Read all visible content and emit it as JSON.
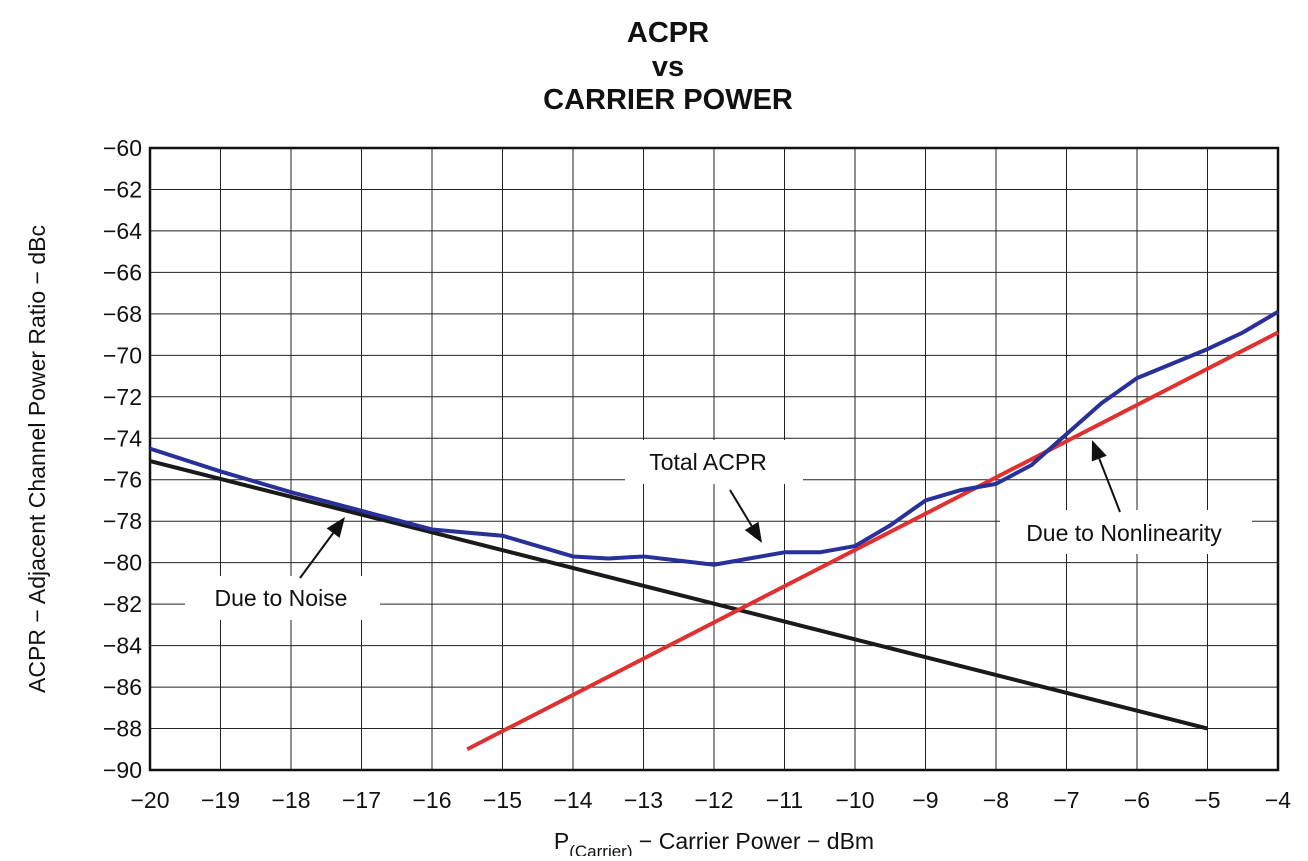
{
  "chart_data": {
    "type": "line",
    "title": [
      "ACPR",
      "vs",
      "CARRIER POWER"
    ],
    "xlabel": {
      "main": "P",
      "sub": "(Carrier)",
      "rest": " − Carrier Power − dBm"
    },
    "ylabel": "ACPR − Adjacent Channel Power Ratio − dBc",
    "xlim": [
      -20,
      -4
    ],
    "ylim": [
      -90,
      -60
    ],
    "xticks": [
      {
        "value": -20,
        "label": "−20"
      },
      {
        "value": -19,
        "label": "−19"
      },
      {
        "value": -18,
        "label": "−18"
      },
      {
        "value": -17,
        "label": "−17"
      },
      {
        "value": -16,
        "label": "−16"
      },
      {
        "value": -15,
        "label": "−15"
      },
      {
        "value": -14,
        "label": "−14"
      },
      {
        "value": -13,
        "label": "−13"
      },
      {
        "value": -12,
        "label": "−12"
      },
      {
        "value": -11,
        "label": "−11"
      },
      {
        "value": -10,
        "label": "−10"
      },
      {
        "value": -9,
        "label": "−9"
      },
      {
        "value": -8,
        "label": "−8"
      },
      {
        "value": -7,
        "label": "−7"
      },
      {
        "value": -6,
        "label": "−6"
      },
      {
        "value": -5,
        "label": "−5"
      },
      {
        "value": -4,
        "label": "−4"
      }
    ],
    "yticks": [
      {
        "value": -60,
        "label": "−60"
      },
      {
        "value": -62,
        "label": "−62"
      },
      {
        "value": -64,
        "label": "−64"
      },
      {
        "value": -66,
        "label": "−66"
      },
      {
        "value": -68,
        "label": "−68"
      },
      {
        "value": -70,
        "label": "−70"
      },
      {
        "value": -72,
        "label": "−72"
      },
      {
        "value": -74,
        "label": "−74"
      },
      {
        "value": -76,
        "label": "−76"
      },
      {
        "value": -78,
        "label": "−78"
      },
      {
        "value": -80,
        "label": "−80"
      },
      {
        "value": -82,
        "label": "−82"
      },
      {
        "value": -84,
        "label": "−84"
      },
      {
        "value": -86,
        "label": "−86"
      },
      {
        "value": -88,
        "label": "−88"
      },
      {
        "value": -90,
        "label": "−90"
      }
    ],
    "grid": true,
    "series": [
      {
        "name": "Due to Noise",
        "color": "#1a1a1a",
        "x": [
          -20,
          -5
        ],
        "values": [
          -75.1,
          -88.0
        ]
      },
      {
        "name": "Due to Nonlinearity",
        "color": "#e03131",
        "x": [
          -15.5,
          -4
        ],
        "values": [
          -89.0,
          -68.9
        ]
      },
      {
        "name": "Total ACPR",
        "color": "#28309a",
        "x": [
          -20,
          -19,
          -18,
          -17,
          -16,
          -15,
          -14.5,
          -14,
          -13.5,
          -13,
          -12.5,
          -12,
          -11.5,
          -11,
          -10.5,
          -10,
          -9.5,
          -9,
          -8.5,
          -8,
          -7.5,
          -7,
          -6.5,
          -6,
          -5.5,
          -5,
          -4.5,
          -4
        ],
        "values": [
          -74.5,
          -75.6,
          -76.6,
          -77.5,
          -78.4,
          -78.7,
          -79.2,
          -79.7,
          -79.8,
          -79.7,
          -79.9,
          -80.1,
          -79.8,
          -79.5,
          -79.5,
          -79.2,
          -78.2,
          -77.0,
          -76.5,
          -76.2,
          -75.3,
          -73.8,
          -72.3,
          -71.1,
          -70.4,
          -69.7,
          -68.9,
          -67.9
        ]
      }
    ]
  }
}
